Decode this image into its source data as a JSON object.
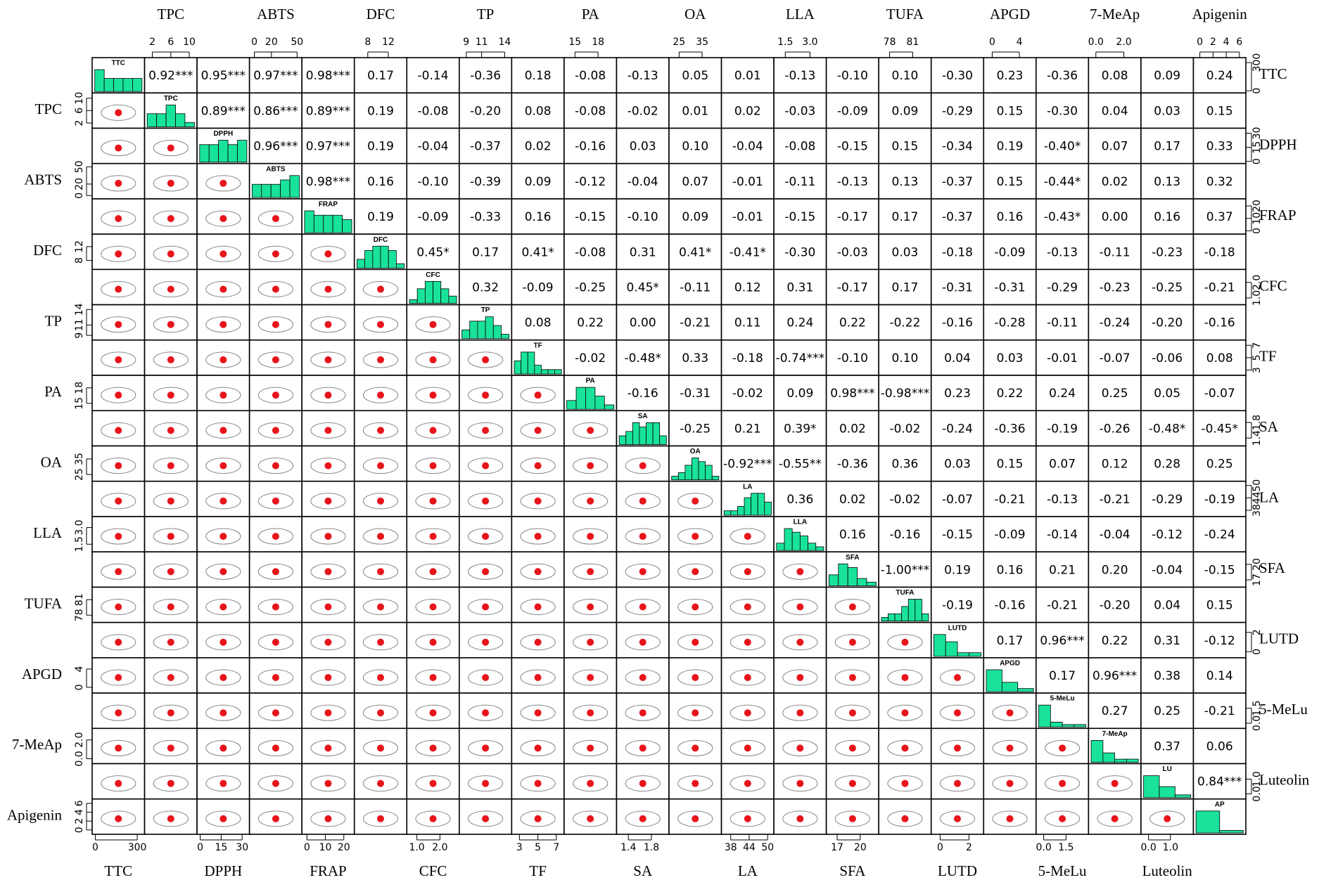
{
  "chart_data": {
    "type": "pairs",
    "variables": [
      {
        "name": "TTC",
        "hist_label": "TTC",
        "lim": [
          0,
          330
        ],
        "ticks": [
          0,
          300
        ],
        "hist": [
          5,
          3,
          3,
          3,
          3
        ]
      },
      {
        "name": "TPC",
        "hist_label": "TPC",
        "lim": [
          1,
          11
        ],
        "ticks": [
          2,
          6,
          10
        ],
        "hist": [
          3,
          3,
          5,
          3,
          1
        ]
      },
      {
        "name": "DPPH",
        "hist_label": "DPPH",
        "lim": [
          0,
          33
        ],
        "ticks": [
          0,
          15,
          30
        ],
        "hist": [
          4,
          4,
          5,
          4,
          5
        ]
      },
      {
        "name": "ABTS",
        "hist_label": "ABTS",
        "lim": [
          -2,
          52
        ],
        "ticks": [
          0,
          20,
          50
        ],
        "hist": [
          3,
          3,
          3,
          4,
          5
        ]
      },
      {
        "name": "FRAP",
        "hist_label": "FRAP",
        "lim": [
          -1,
          24
        ],
        "ticks": [
          0,
          10,
          20
        ],
        "hist": [
          5,
          4,
          4,
          4,
          3
        ]
      },
      {
        "name": "DFC",
        "hist_label": "DFC",
        "lim": [
          6,
          15
        ],
        "ticks": [
          8,
          12
        ],
        "hist": [
          2,
          4,
          5,
          5,
          4,
          1
        ]
      },
      {
        "name": "CFC",
        "hist_label": "CFC",
        "lim": [
          0.7,
          2.7
        ],
        "ticks": [
          {
            "value": 1,
            "label": "1.0"
          },
          {
            "value": 2,
            "label": "2.0"
          }
        ],
        "hist": [
          1,
          4,
          6,
          6,
          4,
          2
        ]
      },
      {
        "name": "TP",
        "hist_label": "TP",
        "lim": [
          8.5,
          14.5
        ],
        "ticks": [
          9,
          11,
          14
        ],
        "hist": [
          2,
          4,
          4,
          5,
          3,
          1
        ]
      },
      {
        "name": "TF",
        "hist_label": "TF",
        "lim": [
          2.5,
          7.5
        ],
        "ticks": [
          3,
          5,
          7
        ],
        "hist": [
          3,
          5,
          5,
          2,
          1,
          1,
          1
        ]
      },
      {
        "name": "PA",
        "hist_label": "PA",
        "lim": [
          14,
          20
        ],
        "ticks": [
          15,
          18
        ],
        "hist": [
          2,
          5,
          5,
          3,
          1
        ]
      },
      {
        "name": "SA",
        "hist_label": "SA",
        "lim": [
          1.25,
          2.05
        ],
        "ticks": [
          1.4,
          1.8
        ],
        "hist": [
          2,
          3,
          5,
          4,
          5,
          5,
          2
        ]
      },
      {
        "name": "OA",
        "hist_label": "OA",
        "lim": [
          22,
          42
        ],
        "ticks": [
          25,
          35
        ],
        "hist": [
          1,
          2,
          4,
          6,
          5,
          4,
          1
        ]
      },
      {
        "name": "LA",
        "hist_label": "LA",
        "lim": [
          36,
          51
        ],
        "ticks": [
          38,
          44,
          50
        ],
        "hist": [
          1,
          1,
          2,
          4,
          5,
          5,
          3
        ]
      },
      {
        "name": "LLA",
        "hist_label": "LLA",
        "lim": [
          1,
          3.8
        ],
        "ticks": [
          1.5,
          {
            "value": 3,
            "label": "3.0"
          }
        ],
        "hist": [
          2,
          6,
          5,
          4,
          2,
          1
        ]
      },
      {
        "name": "SFA",
        "hist_label": "SFA",
        "lim": [
          16,
          22
        ],
        "ticks": [
          17,
          20
        ],
        "hist": [
          3,
          6,
          5,
          2,
          1
        ]
      },
      {
        "name": "TUFA",
        "hist_label": "TUFA",
        "lim": [
          77,
          83
        ],
        "ticks": [
          78,
          81
        ],
        "hist": [
          1,
          2,
          2,
          4,
          6,
          6,
          2
        ]
      },
      {
        "name": "LUTD",
        "hist_label": "LUTD",
        "lim": [
          -0.4,
          2.8
        ],
        "ticks": [
          0,
          2
        ],
        "hist": [
          6,
          4,
          1,
          1
        ]
      },
      {
        "name": "APGD",
        "hist_label": "APGD",
        "lim": [
          -0.8,
          6
        ],
        "ticks": [
          0,
          4
        ],
        "hist": [
          7,
          3,
          1
        ]
      },
      {
        "name": "5-MeLu",
        "hist_label": "5-MeLu",
        "lim": [
          -0.3,
          2.8
        ],
        "ticks": [
          {
            "value": 0,
            "label": "0.0"
          },
          1.5
        ],
        "hist": [
          9,
          2,
          1,
          1
        ]
      },
      {
        "name": "7-MeAp",
        "hist_label": "7-MeAp",
        "lim": [
          -0.3,
          3
        ],
        "ticks": [
          {
            "value": 0,
            "label": "0.0"
          },
          {
            "value": 2,
            "label": "2.0"
          }
        ],
        "hist": [
          7,
          3,
          1,
          1
        ]
      },
      {
        "name": "Luteolin",
        "hist_label": "LU",
        "lim": [
          -0.2,
          1.9
        ],
        "ticks": [
          {
            "value": 0,
            "label": "0.0"
          },
          {
            "value": 1,
            "label": "1.0"
          }
        ],
        "hist": [
          8,
          4,
          1
        ]
      },
      {
        "name": "Apigenin",
        "hist_label": "AP",
        "lim": [
          -0.5,
          6.5
        ],
        "ticks": [
          0,
          2,
          4,
          6
        ],
        "hist": [
          9,
          1
        ]
      }
    ],
    "correlations": [
      [
        "0.92***",
        "0.95***",
        "0.97***",
        "0.98***",
        "0.17",
        "-0.14",
        "-0.36",
        "0.18",
        "-0.08",
        "-0.13",
        "0.05",
        "0.01",
        "-0.13",
        "-0.10",
        "0.10",
        "-0.30",
        "0.23",
        "-0.36",
        "0.08",
        "0.09",
        "0.24"
      ],
      [
        "0.89***",
        "0.86***",
        "0.89***",
        "0.19",
        "-0.08",
        "-0.20",
        "0.08",
        "-0.08",
        "-0.02",
        "0.01",
        "0.02",
        "-0.03",
        "-0.09",
        "0.09",
        "-0.29",
        "0.15",
        "-0.30",
        "0.04",
        "0.03",
        "0.15"
      ],
      [
        "0.96***",
        "0.97***",
        "0.19",
        "-0.04",
        "-0.37",
        "0.02",
        "-0.16",
        "0.03",
        "0.10",
        "-0.04",
        "-0.08",
        "-0.15",
        "0.15",
        "-0.34",
        "0.19",
        "-0.40*",
        "0.07",
        "0.17",
        "0.33"
      ],
      [
        "0.98***",
        "0.16",
        "-0.10",
        "-0.39",
        "0.09",
        "-0.12",
        "-0.04",
        "0.07",
        "-0.01",
        "-0.11",
        "-0.13",
        "0.13",
        "-0.37",
        "0.15",
        "-0.44*",
        "0.02",
        "0.13",
        "0.32"
      ],
      [
        "0.19",
        "-0.09",
        "-0.33",
        "0.16",
        "-0.15",
        "-0.10",
        "0.09",
        "-0.01",
        "-0.15",
        "-0.17",
        "0.17",
        "-0.37",
        "0.16",
        "-0.43*",
        "0.00",
        "0.16",
        "0.37"
      ],
      [
        "0.45*",
        "0.17",
        "0.41*",
        "-0.08",
        "0.31",
        "0.41*",
        "-0.41*",
        "-0.30",
        "-0.03",
        "0.03",
        "-0.18",
        "-0.09",
        "-0.13",
        "-0.11",
        "-0.23",
        "-0.18"
      ],
      [
        "0.32",
        "-0.09",
        "-0.25",
        "0.45*",
        "-0.11",
        "0.12",
        "0.31",
        "-0.17",
        "0.17",
        "-0.31",
        "-0.31",
        "-0.29",
        "-0.23",
        "-0.25",
        "-0.21"
      ],
      [
        "0.08",
        "0.22",
        "0.00",
        "-0.21",
        "0.11",
        "0.24",
        "0.22",
        "-0.22",
        "-0.16",
        "-0.28",
        "-0.11",
        "-0.24",
        "-0.20",
        "-0.16"
      ],
      [
        "-0.02",
        "-0.48*",
        "0.33",
        "-0.18",
        "-0.74***",
        "-0.10",
        "0.10",
        "0.04",
        "0.03",
        "-0.01",
        "-0.07",
        "-0.06",
        "0.08"
      ],
      [
        "-0.16",
        "-0.31",
        "-0.02",
        "0.09",
        "0.98***",
        "-0.98***",
        "0.23",
        "0.22",
        "0.24",
        "0.25",
        "0.05",
        "-0.07"
      ],
      [
        "-0.25",
        "0.21",
        "0.39*",
        "0.02",
        "-0.02",
        "-0.24",
        "-0.36",
        "-0.19",
        "-0.26",
        "-0.48*",
        "-0.45*"
      ],
      [
        "-0.92***",
        "-0.55**",
        "-0.36",
        "0.36",
        "0.03",
        "0.15",
        "0.07",
        "0.12",
        "0.28",
        "0.25"
      ],
      [
        "0.36",
        "0.02",
        "-0.02",
        "-0.07",
        "-0.21",
        "-0.13",
        "-0.21",
        "-0.29",
        "-0.19"
      ],
      [
        "0.16",
        "-0.16",
        "-0.15",
        "-0.09",
        "-0.14",
        "-0.04",
        "-0.12",
        "-0.24"
      ],
      [
        "-1.00***",
        "0.19",
        "0.16",
        "0.21",
        "0.20",
        "-0.04",
        "-0.15"
      ],
      [
        "-0.19",
        "-0.16",
        "-0.21",
        "-0.20",
        "0.04",
        "0.15"
      ],
      [
        "0.17",
        "0.96***",
        "0.22",
        "0.31",
        "-0.12"
      ],
      [
        "0.17",
        "0.96***",
        "0.38",
        "0.14"
      ],
      [
        "0.27",
        "0.25",
        "-0.21"
      ],
      [
        "0.37",
        "0.06"
      ],
      [
        "0.84***"
      ]
    ],
    "hist_color": "#19e39a"
  }
}
